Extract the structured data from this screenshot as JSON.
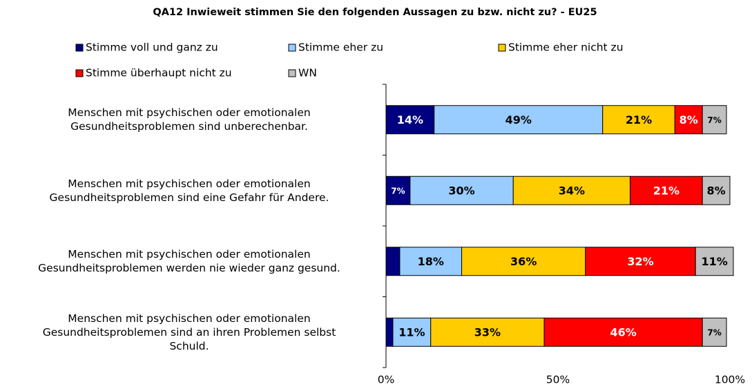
{
  "chart_data": {
    "type": "stacked-bar-horizontal",
    "title": "QA12 Inwieweit stimmen Sie den folgenden Aussagen zu bzw. nicht zu? - EU25",
    "categories": [
      "Menschen mit psychischen oder emotionalen\nGesundheitsproblemen sind unberechenbar.",
      "Menschen mit psychischen oder emotionalen\nGesundheitsproblemen sind eine Gefahr für Andere.",
      "Menschen mit psychischen oder emotionalen\nGesundheitsproblemen werden nie wieder ganz gesund.",
      "Menschen mit psychischen oder emotionalen\nGesundheitsproblemen sind an ihren Problemen selbst\nSchuld."
    ],
    "series": [
      {
        "name": "Stimme voll und ganz zu",
        "color": "#000080",
        "values": [
          14,
          7,
          4,
          2
        ],
        "value_labels": [
          "14%",
          "7%",
          null,
          null
        ]
      },
      {
        "name": "Stimme eher zu",
        "color": "#99ccff",
        "values": [
          49,
          30,
          18,
          11
        ],
        "value_labels": [
          "49%",
          "30%",
          "18%",
          "11%"
        ]
      },
      {
        "name": "Stimme eher nicht zu",
        "color": "#ffcc00",
        "values": [
          21,
          34,
          36,
          33
        ],
        "value_labels": [
          "21%",
          "34%",
          "36%",
          "33%"
        ]
      },
      {
        "name": "Stimme überhaupt nicht zu",
        "color": "#ff0000",
        "values": [
          8,
          21,
          32,
          46
        ],
        "value_labels": [
          "8%",
          "21%",
          "32%",
          "46%"
        ]
      },
      {
        "name": "WN",
        "color": "#c0c0c0",
        "values": [
          7,
          8,
          11,
          7
        ],
        "value_labels": [
          "7%",
          "8%",
          "11%",
          "7%"
        ]
      }
    ],
    "xlim": [
      0,
      100
    ],
    "xticks": [
      {
        "value": 0,
        "label": "0%"
      },
      {
        "value": 50,
        "label": "50%"
      },
      {
        "value": 100,
        "label": "100%"
      }
    ]
  }
}
